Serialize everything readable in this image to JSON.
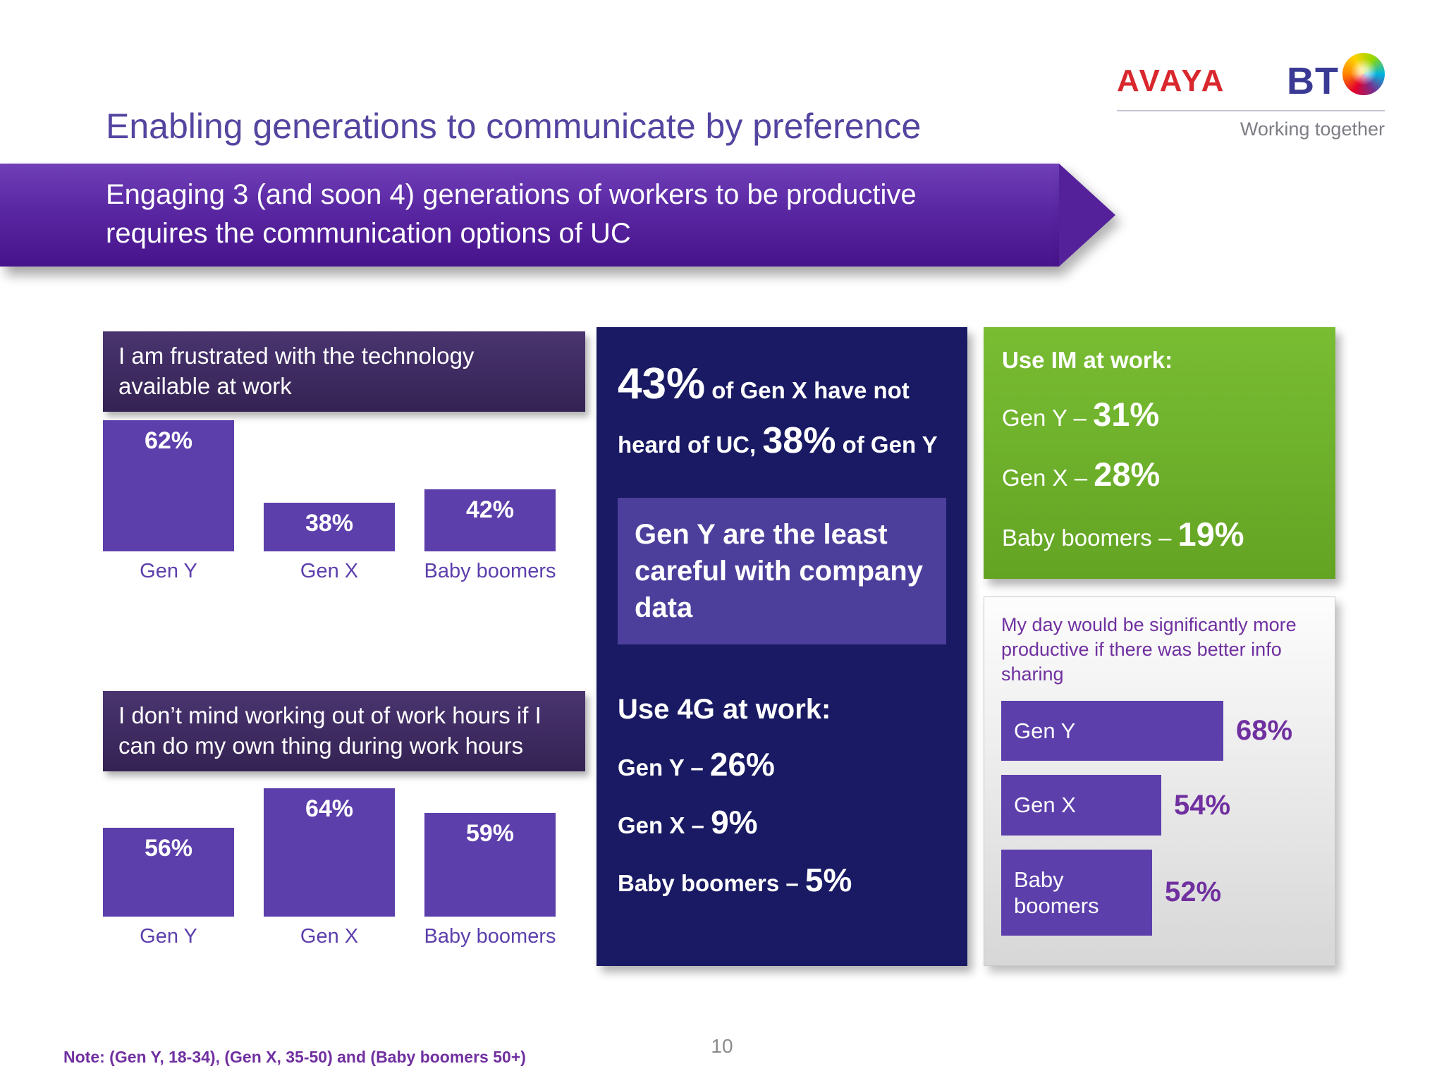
{
  "slide": {
    "title": "Enabling generations to communicate by preference",
    "banner": {
      "line1": "Engaging 3 (and soon 4) generations of workers to be productive",
      "line2": "requires the communication options of UC"
    },
    "footnote": "Note: (Gen Y, 18-34), (Gen X, 35-50) and (Baby boomers 50+)",
    "page_number": "10"
  },
  "branding": {
    "avaya_logo_text": "AVAYA",
    "bt_logo_text": "BT",
    "bt_globe_icon": "bt-globe",
    "tagline": "Working together"
  },
  "colors": {
    "title_purple": "#5345a0",
    "banner_purple": "#5a27a2",
    "header_box_purple": "#3d2b63",
    "bar_purple": "#5c3fab",
    "navy_panel": "#191a63",
    "callout_purple": "#4c3f9c",
    "green_panel": "#6cb32c",
    "accent_text_purple": "#7030a0",
    "avaya_red": "#d9272e",
    "bt_blue": "#3a3a94"
  },
  "uc_stats": {
    "pct_genx": "43%",
    "text_a": " of Gen X have not heard of UC, ",
    "pct_geny": "38%",
    "text_b": " of Gen Y",
    "callout": "Gen Y are the least careful with company data",
    "use4g_title": "Use 4G at work:",
    "use4g": [
      {
        "label": "Gen Y – ",
        "value": "26%"
      },
      {
        "label": "Gen X – ",
        "value": "9%"
      },
      {
        "label": "Baby boomers – ",
        "value": "5%"
      }
    ]
  },
  "im_panel": {
    "title": "Use IM at work:",
    "items": [
      {
        "label": "Gen Y – ",
        "value": "31%"
      },
      {
        "label": "Gen X – ",
        "value": "28%"
      },
      {
        "label": "Baby boomers – ",
        "value": "19%"
      }
    ]
  },
  "chart_data": [
    {
      "type": "bar",
      "orientation": "vertical",
      "title": "I am frustrated with the technology available at work",
      "categories": [
        "Gen Y",
        "Gen X",
        "Baby boomers"
      ],
      "values": [
        62,
        38,
        42
      ],
      "unit": "%",
      "ylim": [
        0,
        100
      ],
      "grid": false,
      "legend": "none"
    },
    {
      "type": "bar",
      "orientation": "vertical",
      "title": "I don’t mind working out of work hours if I can do my own thing during work hours",
      "categories": [
        "Gen Y",
        "Gen X",
        "Baby boomers"
      ],
      "values": [
        56,
        64,
        59
      ],
      "unit": "%",
      "ylim": [
        0,
        100
      ],
      "grid": false,
      "legend": "none"
    },
    {
      "type": "bar",
      "orientation": "horizontal",
      "title": "My day would be significantly more productive if there was better info sharing",
      "categories": [
        "Gen Y",
        "Gen X",
        "Baby boomers"
      ],
      "values": [
        68,
        54,
        52
      ],
      "unit": "%",
      "xlim": [
        0,
        100
      ],
      "grid": false,
      "legend": "none"
    }
  ]
}
